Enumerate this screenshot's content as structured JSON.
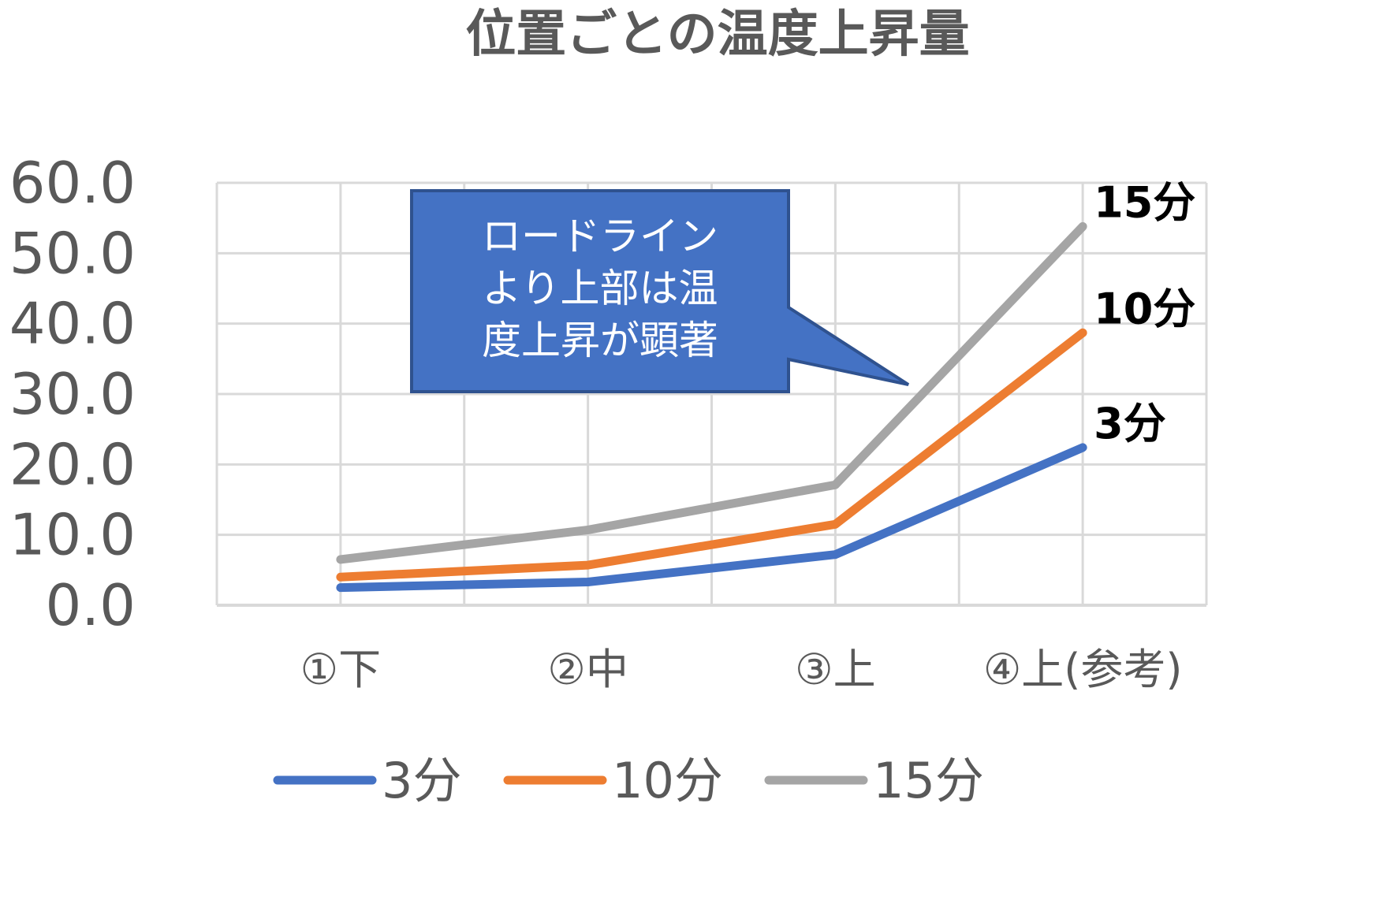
{
  "chart_data": {
    "type": "line",
    "title": "位置ごとの温度上昇量",
    "categories": [
      "①下",
      "②中",
      "③上",
      "④上(参考)"
    ],
    "ylim": [
      0,
      60
    ],
    "yticks": [
      "0.0",
      "10.0",
      "20.0",
      "30.0",
      "40.0",
      "50.0",
      "60.0"
    ],
    "grid": true,
    "legend_position": "bottom",
    "series": [
      {
        "name": "3分",
        "color": "#4472C4",
        "values": [
          2.5,
          3.3,
          7.2,
          22.4
        ],
        "end_label": "3分"
      },
      {
        "name": "10分",
        "color": "#ED7D31",
        "values": [
          4.0,
          5.7,
          11.5,
          38.7
        ],
        "end_label": "10分"
      },
      {
        "name": "15分",
        "color": "#A5A5A5",
        "values": [
          6.5,
          10.7,
          17.1,
          53.8
        ],
        "end_label": "15分"
      }
    ],
    "annotation": {
      "lines": [
        "ロードライン",
        "より上部は温",
        "度上昇が顕著"
      ],
      "fill": "#4472C4",
      "border": "#2F528F"
    }
  }
}
